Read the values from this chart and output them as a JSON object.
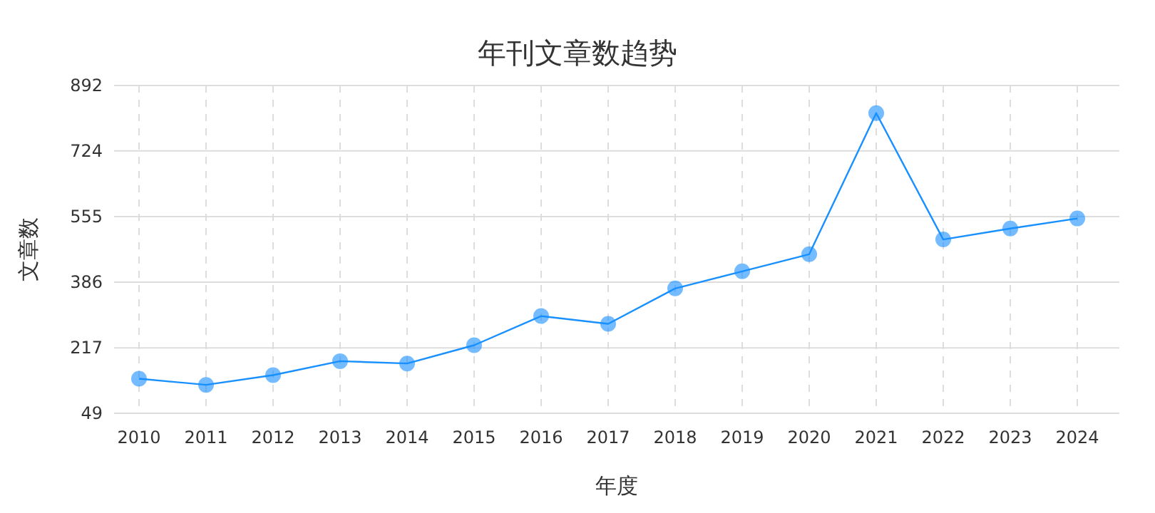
{
  "chart_data": {
    "type": "line",
    "title": "年刊文章数趋势",
    "xlabel": "年度",
    "ylabel": "文章数",
    "categories": [
      "2010",
      "2011",
      "2012",
      "2013",
      "2014",
      "2015",
      "2016",
      "2017",
      "2018",
      "2019",
      "2020",
      "2021",
      "2022",
      "2023",
      "2024"
    ],
    "series": [
      {
        "color": "#1890ff",
        "values": [
          138,
          122,
          147,
          183,
          177,
          224,
          299,
          279,
          370,
          414,
          458,
          821,
          496,
          524,
          550
        ]
      }
    ],
    "ylim": [
      49,
      892
    ],
    "yticks": [
      49,
      217,
      386,
      555,
      724,
      892
    ],
    "grid": true,
    "marker": "circle",
    "line_style": "solid"
  }
}
